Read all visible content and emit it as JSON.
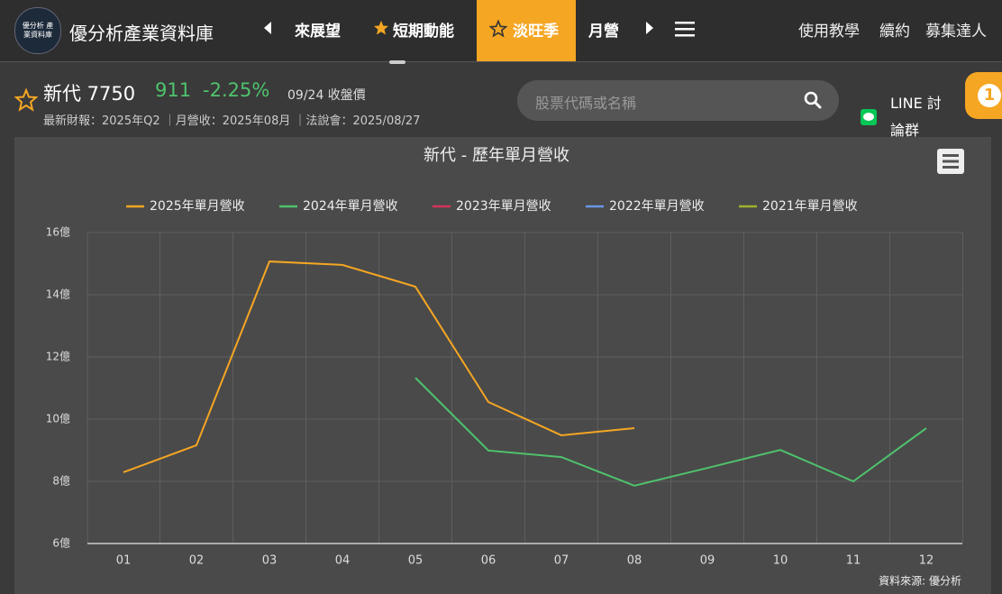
{
  "header": {
    "logo_text": "優分析 產業資料庫",
    "title": "優分析產業資料庫",
    "nav": [
      "來展望",
      "短期動能",
      "淡旺季",
      "月營"
    ],
    "links": [
      "使用教學",
      "續約",
      "募集達人"
    ]
  },
  "stock": {
    "name": "新代 7750",
    "price": "911",
    "change": "-2.25%",
    "date": "09/24 收盤價",
    "info": "最新財報：2025年Q2 ｜月營收：2025年08月 ｜法說會：2025/08/27"
  },
  "search": {
    "placeholder": "股票代碼或名稱"
  },
  "line_group": {
    "label": "LINE 討論群",
    "badge": "1"
  },
  "chart_data": {
    "type": "line",
    "title": "新代 - 歷年單月營收",
    "source": "資料來源: 優分析",
    "categories": [
      "01",
      "02",
      "03",
      "04",
      "05",
      "06",
      "07",
      "08",
      "09",
      "10",
      "11",
      "12"
    ],
    "series": [
      {
        "name": "2025年單月營收",
        "color": "#f5a623",
        "values": [
          8.29,
          9.16,
          15.07,
          14.96,
          14.26,
          10.55,
          9.48,
          9.71,
          null,
          null,
          null,
          null
        ]
      },
      {
        "name": "2024年單月營收",
        "color": "#4fc26d",
        "values": [
          null,
          null,
          null,
          null,
          11.33,
          8.99,
          8.78,
          7.86,
          8.43,
          9.01,
          8.0,
          9.71
        ]
      },
      {
        "name": "2023年單月營收",
        "color": "#d6335b",
        "values": [
          null,
          null,
          null,
          null,
          null,
          null,
          null,
          null,
          null,
          null,
          null,
          null
        ]
      },
      {
        "name": "2022年單月營收",
        "color": "#6b96e8",
        "values": [
          null,
          null,
          null,
          null,
          null,
          null,
          null,
          null,
          null,
          null,
          null,
          null
        ]
      },
      {
        "name": "2021年單月營收",
        "color": "#9fb12d",
        "values": [
          null,
          null,
          null,
          null,
          null,
          null,
          null,
          null,
          null,
          null,
          null,
          null
        ]
      }
    ],
    "ylim": [
      6,
      16
    ],
    "yticks": [
      {
        "value": 6,
        "label": "6億"
      },
      {
        "value": 8,
        "label": "8億"
      },
      {
        "value": 10,
        "label": "10億"
      },
      {
        "value": 12,
        "label": "12億"
      },
      {
        "value": 14,
        "label": "14億"
      },
      {
        "value": 16,
        "label": "16億"
      }
    ],
    "grid": true,
    "legend": "top"
  }
}
